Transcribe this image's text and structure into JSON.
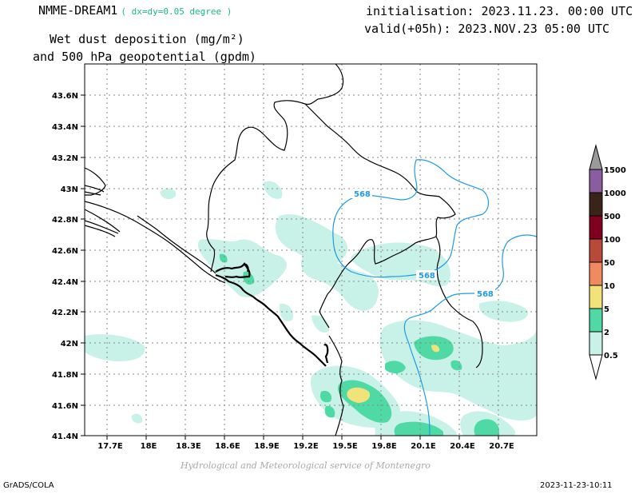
{
  "header": {
    "model": "NMME-DREAM1",
    "resolution": "( dx=dy=0.05 degree )",
    "title_line1": "Wet dust deposition (mg/m²)",
    "title_line2": "and 500 hPa geopotential (gpdm)",
    "initialisation": "initialisation: 2023.11.23. 00:00 UTC",
    "valid": "valid(+05h): 2023.NOV.23 05:00 UTC"
  },
  "footer": {
    "software": "GrADS/COLA",
    "timestamp": "2023-11-23-10:11",
    "credit": "Hydrological and Meteorological service of Montenegro"
  },
  "map": {
    "lon_ticks": [
      "17.7E",
      "18E",
      "18.3E",
      "18.6E",
      "18.9E",
      "19.2E",
      "19.5E",
      "19.8E",
      "20.1E",
      "20.4E",
      "20.7E"
    ],
    "lat_ticks": [
      "41.4N",
      "41.6N",
      "41.8N",
      "42N",
      "42.2N",
      "42.4N",
      "42.6N",
      "42.8N",
      "43N",
      "43.2N",
      "43.4N",
      "43.6N"
    ],
    "contour_labels": [
      "568",
      "568",
      "568"
    ],
    "contour_color": "#1e9be6"
  },
  "legend": {
    "labels": [
      "1500",
      "1000",
      "500",
      "100",
      "50",
      "10",
      "5",
      "2",
      "0.5"
    ],
    "colors": [
      "#9a9a9a",
      "#8a5ca0",
      "#3a2418",
      "#800020",
      "#b84a3a",
      "#f08a60",
      "#f2e27a",
      "#4fd9a4",
      "#c8f2e8"
    ]
  }
}
